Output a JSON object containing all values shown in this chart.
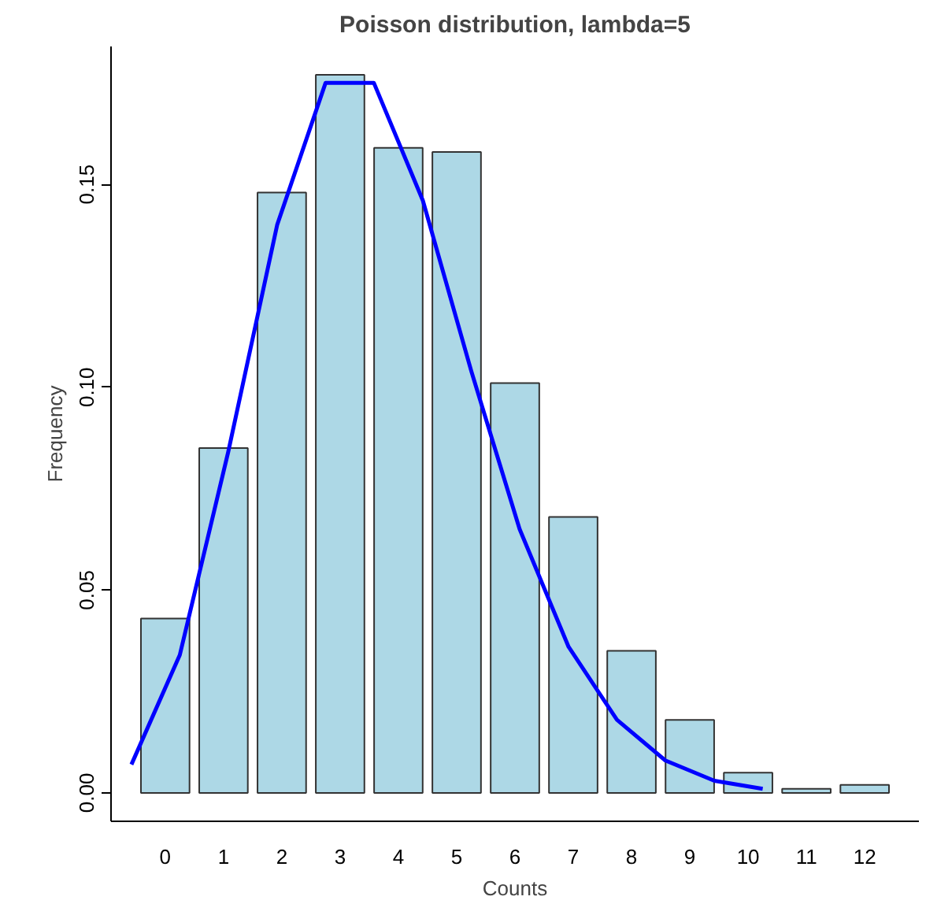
{
  "chart_data": {
    "type": "bar",
    "title": "Poisson distribution, lambda=5",
    "xlabel": "Counts",
    "ylabel": "Frequency",
    "x": [
      0,
      1,
      2,
      3,
      4,
      5,
      6,
      7,
      8,
      9,
      10,
      11,
      12
    ],
    "xlim": [
      -0.93,
      12.93
    ],
    "xticks": [
      0,
      1,
      2,
      3,
      4,
      5,
      6,
      7,
      8,
      9,
      10,
      11,
      12
    ],
    "ylim": [
      -0.007,
      0.184
    ],
    "yticks": [
      {
        "value": 0,
        "label": "0.00"
      },
      {
        "value": 0.05,
        "label": "0.05"
      },
      {
        "value": 0.1,
        "label": "0.10"
      },
      {
        "value": 0.15,
        "label": "0.15"
      }
    ],
    "grid": false,
    "series": [
      {
        "color": "#add8e6",
        "values": [
          0.043,
          0.085,
          0.148,
          0.177,
          0.159,
          0.158,
          0.101,
          0.068,
          0.035,
          0.018,
          0.005,
          0.001,
          0.002
        ]
      },
      {
        "type": "line",
        "color": "#0000ff",
        "x": [
          -0.58,
          0.25,
          1.08,
          1.92,
          2.75,
          3.58,
          4.42,
          5.25,
          6.08,
          6.92,
          7.75,
          8.58,
          9.42,
          10.25
        ],
        "values": [
          0.007,
          0.034,
          0.084,
          0.14,
          0.175,
          0.175,
          0.146,
          0.104,
          0.065,
          0.036,
          0.018,
          0.008,
          0.003,
          0.001
        ]
      }
    ]
  }
}
